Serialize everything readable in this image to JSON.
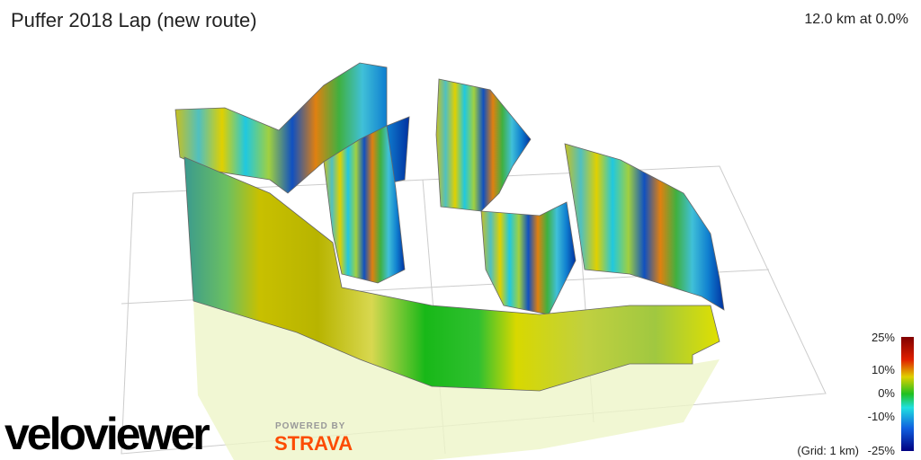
{
  "header": {
    "title": "Puffer 2018 Lap (new route)",
    "summary": "12.0 km at 0.0%"
  },
  "legend": {
    "labels": [
      "25%",
      "10%",
      "0%",
      "-10%",
      "-25%"
    ],
    "grid_note": "(Grid: 1 km)"
  },
  "branding": {
    "logo": "veloviewer",
    "powered_by": "POWERED BY",
    "partner": "STRAVA"
  }
}
